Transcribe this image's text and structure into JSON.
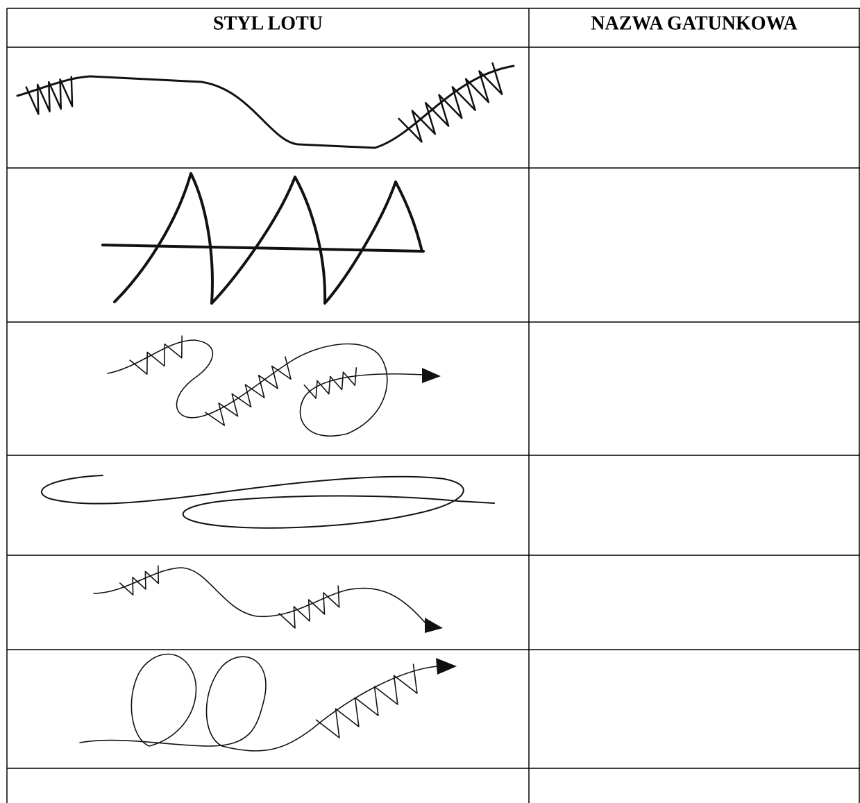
{
  "table": {
    "header": [
      "STYL LOTU",
      "NAZWA GATUNKOWA"
    ]
  }
}
